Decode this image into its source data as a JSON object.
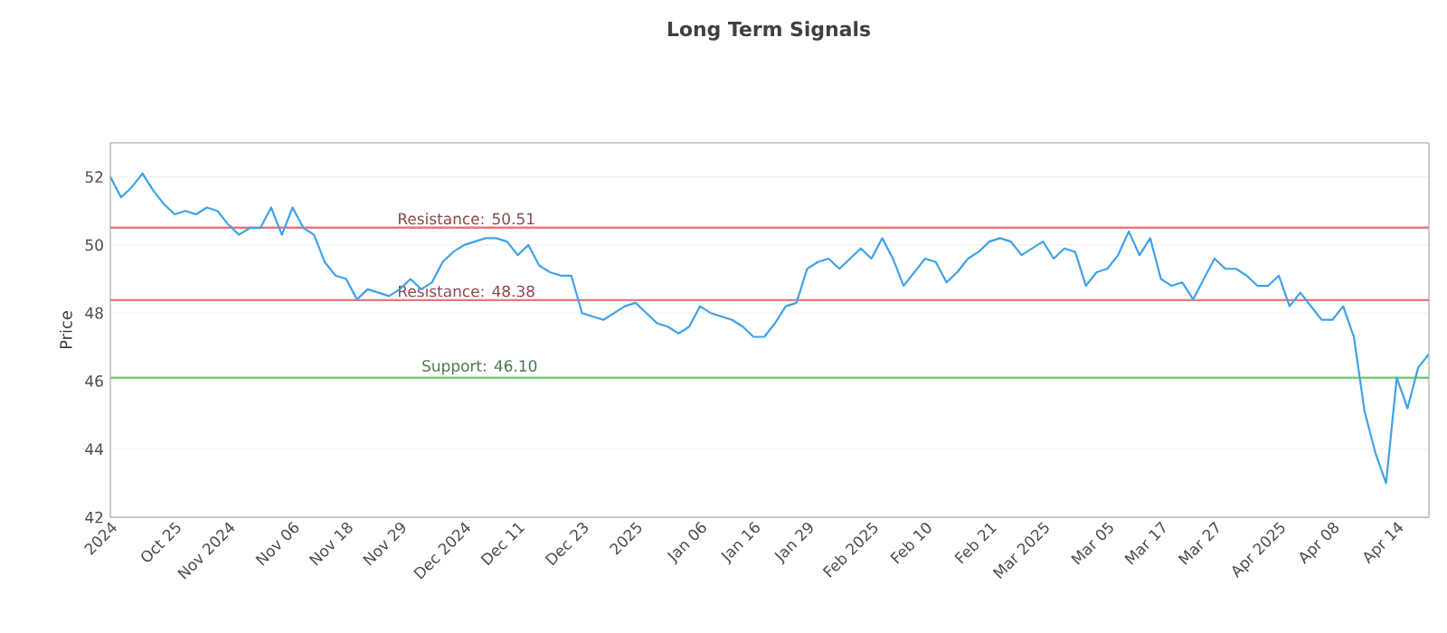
{
  "chart_data": {
    "type": "line",
    "title": "Long Term Signals",
    "ylabel": "Price",
    "categories": [
      "2024",
      null,
      null,
      null,
      null,
      null,
      "Oct 25",
      null,
      null,
      null,
      null,
      "Nov 2024",
      null,
      null,
      null,
      null,
      null,
      "Nov 06",
      null,
      null,
      null,
      null,
      "Nov 18",
      null,
      null,
      null,
      null,
      "Nov 29",
      null,
      null,
      null,
      null,
      null,
      "Dec 2024",
      null,
      null,
      null,
      null,
      "Dec 11",
      null,
      null,
      null,
      null,
      null,
      "Dec 23",
      null,
      null,
      null,
      null,
      "2025",
      null,
      null,
      null,
      null,
      null,
      "Jan 06",
      null,
      null,
      null,
      null,
      "Jan 16",
      null,
      null,
      null,
      null,
      "Jan 29",
      null,
      null,
      null,
      null,
      null,
      "Feb 2025",
      null,
      null,
      null,
      null,
      "Feb 10",
      null,
      null,
      null,
      null,
      null,
      "Feb 21",
      null,
      null,
      null,
      null,
      "Mar 2025",
      null,
      null,
      null,
      null,
      null,
      "Mar 05",
      null,
      null,
      null,
      null,
      "Mar 17",
      null,
      null,
      null,
      null,
      "Mar 27",
      null,
      null,
      null,
      null,
      null,
      "Apr 2025",
      null,
      null,
      null,
      null,
      "Apr 08",
      null,
      null,
      null,
      null,
      null,
      "Apr 14",
      null,
      null,
      null
    ],
    "series": [
      {
        "color": "#3fa2e8",
        "values": [
          52.0,
          51.4,
          51.7,
          52.1,
          51.6,
          51.2,
          50.9,
          51.0,
          50.9,
          51.1,
          51.0,
          50.6,
          50.3,
          50.5,
          50.5,
          51.1,
          50.3,
          51.1,
          50.5,
          50.3,
          49.5,
          49.1,
          49.0,
          48.4,
          48.7,
          48.6,
          48.5,
          48.7,
          49.0,
          48.7,
          48.9,
          49.5,
          49.8,
          50.0,
          50.1,
          50.2,
          50.2,
          50.1,
          49.7,
          50.0,
          49.4,
          49.2,
          49.1,
          49.1,
          48.0,
          47.9,
          47.8,
          48.0,
          48.2,
          48.3,
          48.0,
          47.7,
          47.6,
          47.4,
          47.6,
          48.2,
          48.0,
          47.9,
          47.8,
          47.6,
          47.3,
          47.3,
          47.7,
          48.2,
          48.3,
          49.3,
          49.5,
          49.6,
          49.3,
          49.6,
          49.9,
          49.6,
          50.2,
          49.6,
          48.8,
          49.2,
          49.6,
          49.5,
          48.9,
          49.2,
          49.6,
          49.8,
          50.1,
          50.2,
          50.1,
          49.7,
          49.9,
          50.1,
          49.6,
          49.9,
          49.8,
          48.8,
          49.2,
          49.3,
          49.7,
          50.4,
          49.7,
          50.2,
          49.0,
          48.8,
          48.9,
          48.4,
          49.0,
          49.6,
          49.3,
          49.3,
          49.1,
          48.8,
          48.8,
          49.1,
          48.2,
          48.6,
          48.2,
          47.8,
          47.8,
          48.2,
          47.3,
          45.1,
          43.9,
          43.0,
          46.1,
          45.2,
          46.4,
          46.8
        ]
      }
    ],
    "ylim": [
      42,
      53
    ],
    "yticks": [
      42,
      44,
      46,
      48,
      50,
      52
    ],
    "grid": "y",
    "marker": "none",
    "line_style": "solid",
    "ref_lines": [
      {
        "axis": "y",
        "value": 50.51,
        "label": "Resistance: 50.51",
        "color": "#e8787a"
      },
      {
        "axis": "y",
        "value": 48.38,
        "label": "Resistance: 48.38",
        "color": "#e8787a"
      },
      {
        "axis": "y",
        "value": 46.1,
        "label": "Support: 46.10",
        "color": "#7cc77e"
      }
    ]
  }
}
